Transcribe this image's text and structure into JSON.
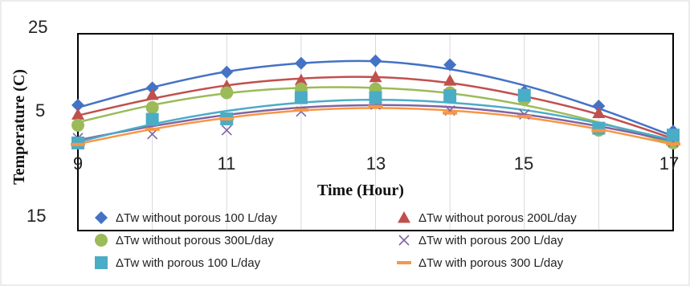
{
  "chart_data": {
    "type": "line",
    "title": "",
    "xlabel": "Time (Hour)",
    "ylabel": "Temperature (C)",
    "x_ticks": [
      "9",
      "11",
      "13",
      "15",
      "17"
    ],
    "y_ticks": [
      "25",
      "5",
      "15"
    ],
    "xlim": [
      9,
      17
    ],
    "ylim": [
      -15,
      25
    ],
    "grid": "vertical",
    "legend_position": "bottom",
    "series": [
      {
        "name": "ΔTw without porous 100 L/day",
        "marker": "diamond",
        "color": "#4472C4",
        "x": [
          9,
          10,
          11,
          12,
          13,
          14,
          15,
          16,
          17
        ],
        "y": [
          10.5,
          14.0,
          17.2,
          19.0,
          19.5,
          18.7,
          13.2,
          10.3,
          5.2
        ],
        "fit": [
          10.0,
          14.1,
          17.3,
          19.0,
          19.4,
          17.8,
          14.5,
          9.8,
          4.2
        ]
      },
      {
        "name": "ΔTw without porous 200L/day",
        "marker": "triangle",
        "color": "#C0504D",
        "x": [
          9,
          10,
          11,
          12,
          13,
          14,
          15,
          16,
          17
        ],
        "y": [
          8.6,
          12.6,
          14.4,
          15.6,
          16.2,
          15.5,
          12.6,
          8.9,
          4.1
        ],
        "fit": [
          8.4,
          11.8,
          14.5,
          15.9,
          16.2,
          15.0,
          12.3,
          8.6,
          3.7
        ]
      },
      {
        "name": "ΔTw without porous 300L/day",
        "marker": "circle",
        "color": "#9BBB59",
        "x": [
          9,
          10,
          11,
          12,
          13,
          14,
          15,
          16,
          17
        ],
        "y": [
          6.4,
          10.0,
          13.0,
          13.8,
          13.8,
          13.0,
          11.7,
          5.4,
          2.8
        ],
        "fit": [
          7.0,
          10.5,
          12.9,
          14.0,
          14.0,
          12.9,
          10.5,
          7.0,
          2.6
        ]
      },
      {
        "name": "ΔTw with porous 200 L/day",
        "marker": "x",
        "color": "#8064A2",
        "x": [
          9,
          10,
          11,
          12,
          13,
          14,
          15,
          16,
          17
        ],
        "y": [
          3.8,
          4.6,
          5.4,
          9.2,
          10.6,
          9.4,
          8.6,
          5.8,
          3.0
        ],
        "fit": [
          3.4,
          6.2,
          8.5,
          10.0,
          10.5,
          10.1,
          8.6,
          6.2,
          3.2
        ]
      },
      {
        "name": "ΔTw with porous 100 L/day",
        "marker": "square",
        "color": "#4BACC6",
        "x": [
          9,
          10,
          11,
          12,
          13,
          14,
          15,
          16,
          17
        ],
        "y": [
          2.8,
          7.6,
          7.7,
          12.0,
          12.0,
          12.4,
          12.5,
          5.8,
          4.4
        ],
        "fit": [
          3.0,
          6.6,
          9.3,
          11.0,
          11.6,
          11.0,
          9.5,
          6.8,
          3.4
        ]
      },
      {
        "name": "ΔTw with porous 300 L/day",
        "marker": "dash",
        "color": "#F79646",
        "x": [
          9,
          10,
          11,
          12,
          13,
          14,
          15,
          16,
          17
        ],
        "y": [
          2.5,
          5.6,
          7.7,
          9.5,
          10.2,
          8.9,
          8.2,
          5.3,
          2.6
        ],
        "fit": [
          2.6,
          5.6,
          7.9,
          9.4,
          9.9,
          9.4,
          8.0,
          5.6,
          2.5
        ]
      }
    ]
  }
}
